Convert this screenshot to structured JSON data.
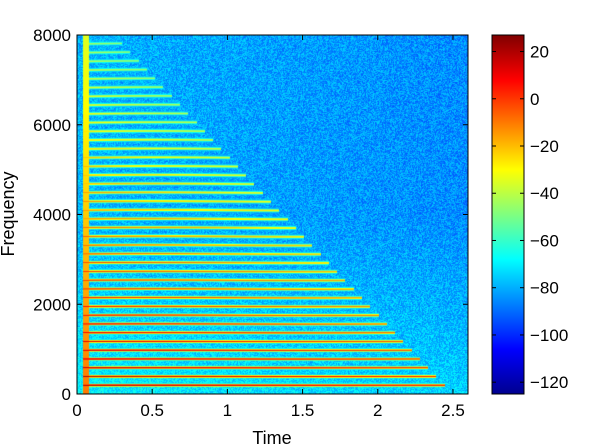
{
  "chart_data": {
    "type": "heatmap",
    "subtype": "spectrogram",
    "title": "",
    "xlabel": "Time",
    "ylabel": "Frequency",
    "xlim": [
      0,
      2.6
    ],
    "ylim": [
      0,
      8000
    ],
    "x_ticks": [
      0,
      0.5,
      1,
      1.5,
      2,
      2.5
    ],
    "x_tick_labels": [
      "0",
      "0.5",
      "1",
      "1.5",
      "2",
      "2.5"
    ],
    "y_ticks": [
      0,
      2000,
      4000,
      6000,
      8000
    ],
    "y_tick_labels": [
      "0",
      "2000",
      "4000",
      "6000",
      "8000"
    ],
    "colorbar": {
      "colormap": "jet",
      "range": [
        -125,
        27
      ],
      "ticks": [
        20,
        0,
        -20,
        -40,
        -60,
        -80,
        -100,
        -120
      ],
      "tick_labels": [
        "20",
        "0",
        "−20",
        "−40",
        "−60",
        "−80",
        "−100",
        "−120"
      ]
    },
    "signal": {
      "onset_time": 0.05,
      "fundamental_hz": 195,
      "harmonic_count": 40
    },
    "background_level_db": -85
  }
}
